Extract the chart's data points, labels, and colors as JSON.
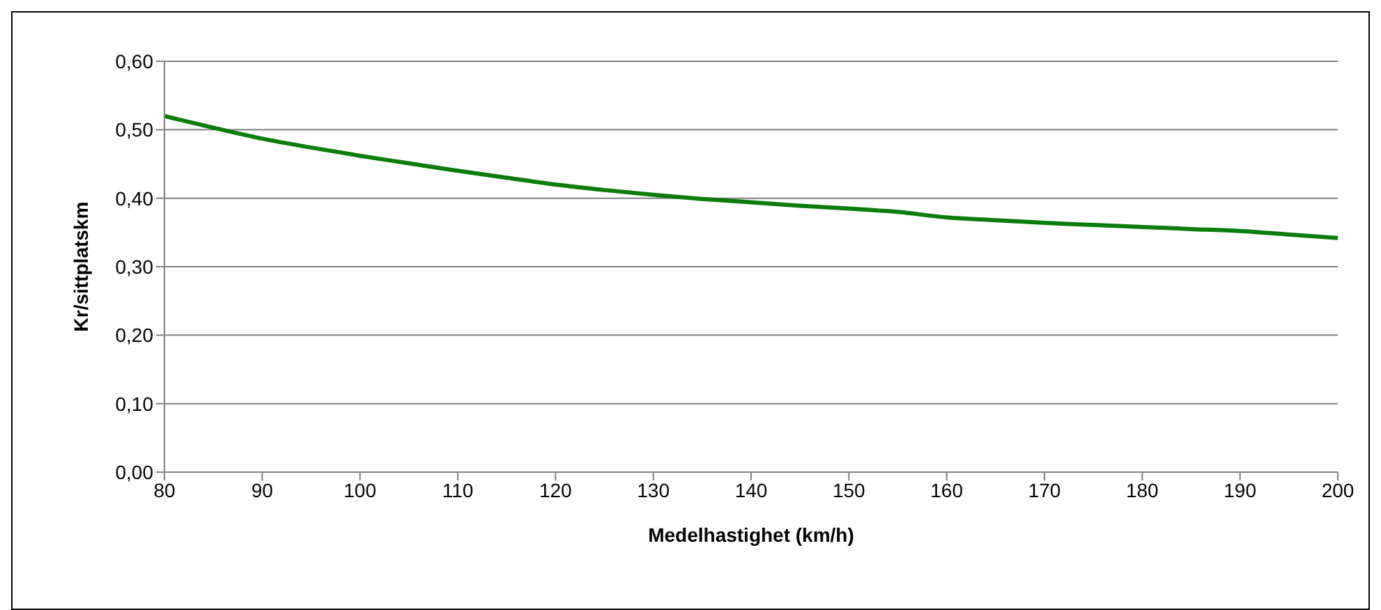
{
  "chart_data": {
    "type": "line",
    "xlabel": "Medelhastighet (km/h)",
    "ylabel": "Kr/sittplatskm",
    "x": [
      80,
      85,
      90,
      95,
      100,
      105,
      110,
      115,
      120,
      125,
      130,
      135,
      140,
      145,
      150,
      155,
      160,
      165,
      170,
      175,
      180,
      185,
      190,
      195,
      200
    ],
    "series": [
      {
        "color": "#0a7d0a",
        "values": [
          0.52,
          0.503,
          0.487,
          0.474,
          0.462,
          0.451,
          0.44,
          0.43,
          0.42,
          0.412,
          0.405,
          0.399,
          0.394,
          0.389,
          0.385,
          0.38,
          0.372,
          0.368,
          0.364,
          0.361,
          0.358,
          0.355,
          0.352,
          0.347,
          0.342
        ]
      }
    ],
    "xlim": [
      80,
      200
    ],
    "xticks": [
      80,
      90,
      100,
      110,
      120,
      130,
      140,
      150,
      160,
      170,
      180,
      190,
      200
    ],
    "ylim": [
      0,
      0.6
    ],
    "yticks": [
      {
        "value": 0,
        "label": "0,00"
      },
      {
        "value": 0.1,
        "label": "0,10"
      },
      {
        "value": 0.2,
        "label": "0,20"
      },
      {
        "value": 0.3,
        "label": "0,30"
      },
      {
        "value": 0.4,
        "label": "0,40"
      },
      {
        "value": 0.5,
        "label": "0,50"
      },
      {
        "value": 0.6,
        "label": "0,60"
      }
    ],
    "grid": "y",
    "legend": false,
    "marker": "none",
    "line_style": "solid"
  }
}
